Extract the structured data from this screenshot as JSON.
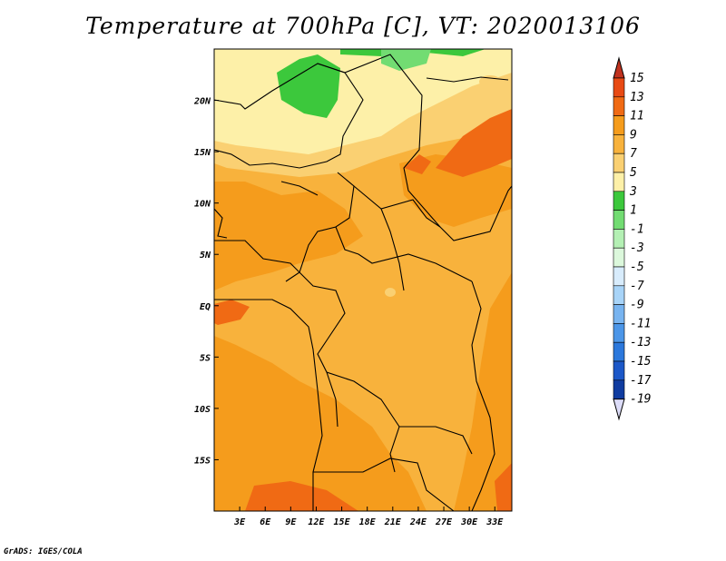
{
  "title": "Temperature at 700hPa [C], VT: 2020013106",
  "credit": "GrADS: IGES/COLA",
  "map": {
    "lon_range": [
      0,
      35
    ],
    "lat_range": [
      -20,
      25
    ],
    "x_ticks": [
      "3E",
      "6E",
      "9E",
      "12E",
      "15E",
      "18E",
      "21E",
      "24E",
      "27E",
      "30E",
      "33E"
    ],
    "x_tick_values": [
      3,
      6,
      9,
      12,
      15,
      18,
      21,
      24,
      27,
      30,
      33
    ],
    "y_ticks": [
      "20N",
      "15N",
      "10N",
      "5N",
      "EQ",
      "5S",
      "10S",
      "15S"
    ],
    "y_tick_values": [
      20,
      15,
      10,
      5,
      0,
      -5,
      -10,
      -15
    ]
  },
  "colorbar": {
    "labels": [
      "15",
      "13",
      "11",
      "9",
      "7",
      "5",
      "3",
      "1",
      "-1",
      "-3",
      "-5",
      "-7",
      "-9",
      "-11",
      "-13",
      "-15",
      "-17",
      "-19"
    ],
    "colors": [
      "#c0321e",
      "#e84a14",
      "#f06a14",
      "#f59c1c",
      "#f8b23c",
      "#fad072",
      "#fdf0a8",
      "#3cc83c",
      "#72dc72",
      "#b4f0b4",
      "#dcf8dc",
      "#d8ecfc",
      "#a8d4f8",
      "#78b4f0",
      "#4c96e8",
      "#2c78dc",
      "#1c58c8",
      "#103ca0",
      "#082478",
      "#0a1058",
      "#dcdcf8"
    ]
  }
}
